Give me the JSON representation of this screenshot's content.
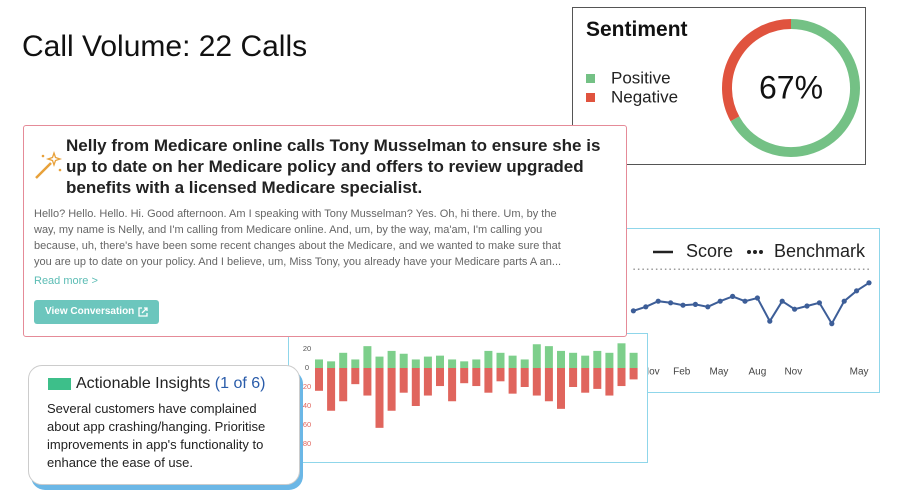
{
  "header": {
    "title": "Call Volume: 22 Calls"
  },
  "sentiment": {
    "title": "Sentiment",
    "type": "donut",
    "series": [
      {
        "name": "Positive",
        "color": "#74c185",
        "value": 67
      },
      {
        "name": "Negative",
        "color": "#e0533e",
        "value": 33
      }
    ],
    "center_label": "67%"
  },
  "score_chart": {
    "type": "line",
    "x": [
      1,
      2,
      3,
      4,
      5,
      6,
      7,
      8,
      9,
      10,
      11,
      12,
      13,
      14,
      15,
      16,
      17,
      18,
      19,
      20
    ],
    "xlim": [
      0,
      21
    ],
    "ylim": [
      0,
      100
    ],
    "xticks": [
      {
        "value": 2.4,
        "label": "Nov"
      },
      {
        "value": 4.9,
        "label": "Feb"
      },
      {
        "value": 7.9,
        "label": "May"
      },
      {
        "value": 11,
        "label": "Aug"
      },
      {
        "value": 13.9,
        "label": "Nov"
      },
      {
        "value": 19.2,
        "label": "May"
      }
    ],
    "series": [
      {
        "name": "Score",
        "color": "#3d5e98",
        "style": "solid",
        "values": [
          44,
          49,
          56,
          54,
          51,
          52,
          49,
          56,
          62,
          56,
          60,
          31,
          56,
          46,
          50,
          54,
          28,
          56,
          69,
          79
        ]
      },
      {
        "name": "Benchmark",
        "color": "#9a9a9a",
        "style": "dotted",
        "values": [
          96,
          96,
          96,
          96,
          96,
          96,
          96,
          96,
          96,
          96,
          96,
          96,
          96,
          96,
          96,
          96,
          96,
          96,
          96,
          96
        ]
      }
    ]
  },
  "bar_chart": {
    "type": "bar",
    "ylim": [
      -90,
      30
    ],
    "yticks": [
      20,
      0,
      {
        "value": -20,
        "label": "20"
      },
      {
        "value": -40,
        "label": "40"
      },
      {
        "value": -60,
        "label": "60"
      },
      {
        "value": -80,
        "label": "80"
      }
    ],
    "series": [
      {
        "color": "#7dcf8b",
        "values": [
          9,
          7,
          16,
          9,
          23,
          12,
          18,
          15,
          9,
          12,
          13,
          9,
          7,
          9,
          18,
          16,
          13,
          9,
          25,
          23,
          18,
          16,
          13,
          18,
          16,
          26,
          16
        ]
      },
      {
        "color": "#e0655d",
        "values": [
          -24,
          -45,
          -35,
          -17,
          -29,
          -63,
          -45,
          -26,
          -40,
          -29,
          -19,
          -35,
          -16,
          -19,
          -26,
          -14,
          -27,
          -20,
          -29,
          -35,
          -43,
          -20,
          -26,
          -22,
          -29,
          -19,
          -12
        ]
      }
    ]
  },
  "summary": {
    "heading": [
      "Nelly from Medicare online calls Tony Musselman to ensure she is",
      "up to date on her Medicare policy and offers to review upgraded",
      "benefits with a licensed Medicare specialist."
    ],
    "transcript": [
      "Hello? Hello. Hello. Hi. Good afternoon. Am I speaking with Tony Musselman? Yes. Oh, hi there. Um, by the",
      "way, my name is Nelly, and I'm calling from Medicare online. And, um, by the way, ma'am, I'm calling you",
      "because, uh, there's have been some recent changes about the Medicare, and we wanted to make sure that",
      "you are up to date on your policy. And I believe, um, Miss Tony, you already have your Medicare parts A an..."
    ],
    "read_more": "Read more >",
    "button": "View Conversation"
  },
  "insights": {
    "title": "Actionable Insights",
    "counter": "(1 of 6)",
    "text": [
      "Several customers have complained",
      "about app crashing/hanging. Prioritise",
      "improvements in app's functionality to",
      "enhance the ease of use."
    ]
  }
}
